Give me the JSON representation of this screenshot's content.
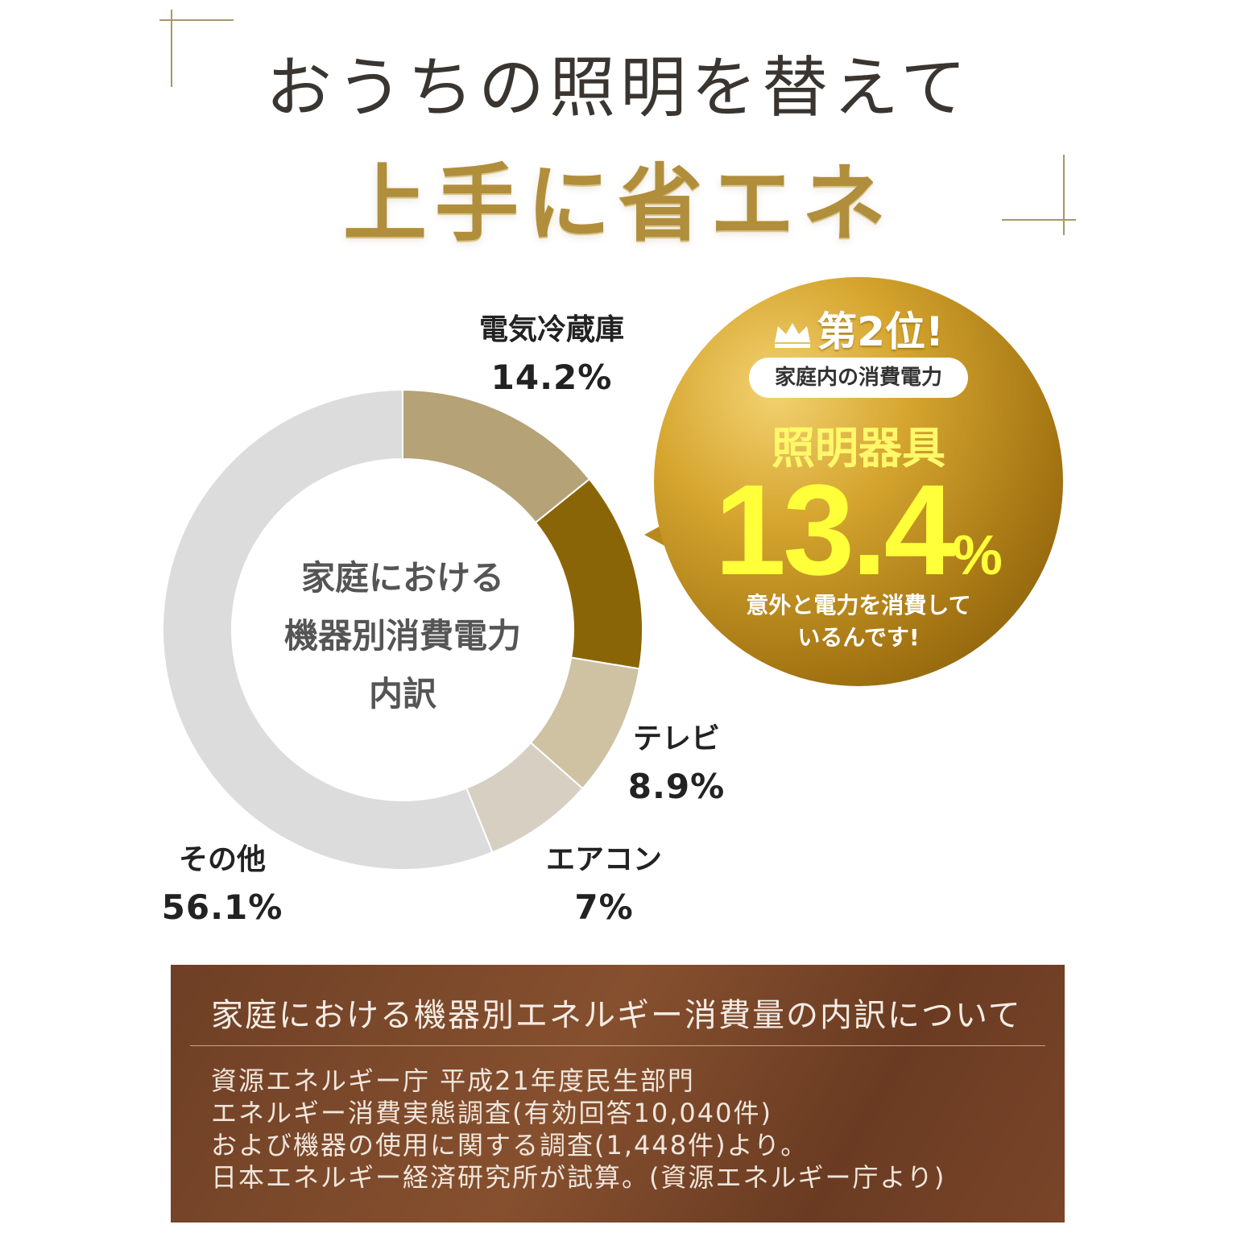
{
  "header": {
    "line1": "おうちの照明を替えて",
    "line2": "上手に省エネ"
  },
  "chart_data": {
    "type": "pie",
    "donut": true,
    "center_title": [
      "家庭における",
      "機器別消費電力",
      "内訳"
    ],
    "slices": [
      {
        "label": "電気冷蔵庫",
        "value": 14.2,
        "value_text": "14.2%",
        "color": "#b5a277"
      },
      {
        "label": "照明器具",
        "value": 13.4,
        "value_text": "13.4%",
        "color": "#8a6508"
      },
      {
        "label": "テレビ",
        "value": 8.9,
        "value_text": "8.9%",
        "color": "#cfc2a2"
      },
      {
        "label": "エアコン",
        "value": 7.4,
        "value_text": "7%",
        "color": "#d7d0c2"
      },
      {
        "label": "その他",
        "value": 56.1,
        "value_text": "56.1%",
        "color": "#dcdcdc"
      }
    ]
  },
  "callout": {
    "rank": "第2位!",
    "pill": "家庭内の消費電力",
    "item": "照明器具",
    "value": "13.4",
    "unit": "%",
    "note": [
      "意外と電力を消費して",
      "いるんです!"
    ]
  },
  "source_box": {
    "title": "家庭における機器別エネルギー消費量の内訳について",
    "lines": [
      "資源エネルギー庁 平成21年度民生部門",
      "エネルギー消費実態調査(有効回答10,040件)",
      "および機器の使用に関する調査(1,448件)より。",
      "日本エネルギー経済研究所が試算。(資源エネルギー庁より)"
    ]
  }
}
